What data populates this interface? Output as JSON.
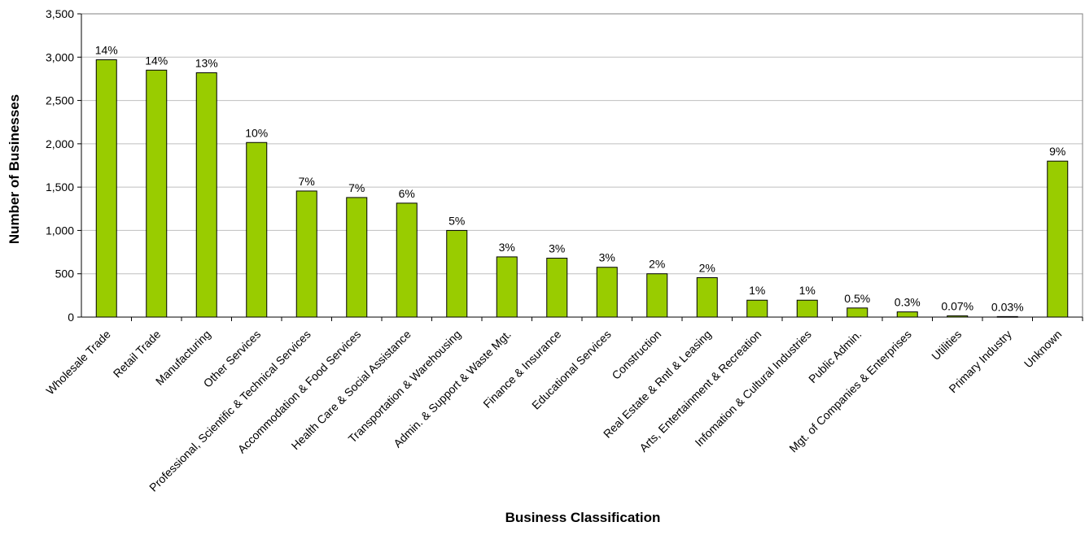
{
  "chart_data": {
    "type": "bar",
    "xlabel": "Business Classification",
    "ylabel": "Number of Businesses",
    "ylim": [
      0,
      3500
    ],
    "yticks": [
      0,
      500,
      1000,
      1500,
      2000,
      2500,
      3000,
      3500
    ],
    "ytick_labels": [
      "0",
      "500",
      "1,000",
      "1,500",
      "2,000",
      "2,500",
      "3,000",
      "3,500"
    ],
    "grid": true,
    "bar_color": "#99cc00",
    "categories": [
      "Wholesale Trade",
      "Retail Trade",
      "Manufacturing",
      "Other Services",
      "Professional, Scientific & Technical Services",
      "Accommodation & Food Services",
      "Health Care & Social Assistance",
      "Transportation & Warehousing",
      "Admin. & Support & Waste Mgt.",
      "Finance & Insurance",
      "Educational Services",
      "Construction",
      "Real Estate & Rntl & Leasing",
      "Arts, Entertainment & Recreation",
      "Infomation & Cultural Industries",
      "Public Admin.",
      "Mgt. of Companies & Enterprises",
      "Utilities",
      "Primary Industry",
      "Unknown"
    ],
    "values": [
      2970,
      2850,
      2820,
      2015,
      1455,
      1380,
      1315,
      1000,
      695,
      680,
      575,
      500,
      455,
      195,
      195,
      105,
      60,
      15,
      6,
      1800
    ],
    "data_labels": [
      "14%",
      "14%",
      "13%",
      "10%",
      "7%",
      "7%",
      "6%",
      "5%",
      "3%",
      "3%",
      "3%",
      "2%",
      "2%",
      "1%",
      "1%",
      "0.5%",
      "0.3%",
      "0.07%",
      "0.03%",
      "9%"
    ]
  }
}
